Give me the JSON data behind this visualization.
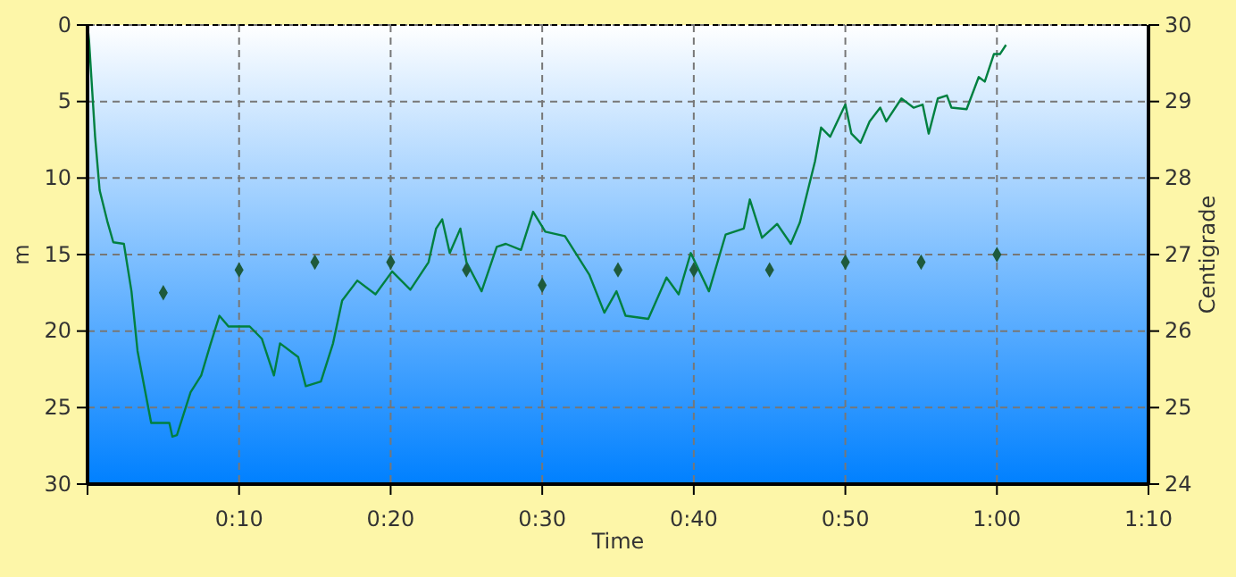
{
  "chart_data": {
    "type": "line",
    "xlabel": "Time",
    "ylabel": "m",
    "y2label": "Centigrade",
    "xlim": [
      0,
      70
    ],
    "xticks": [
      {
        "value": 0,
        "label": null
      },
      {
        "value": 10,
        "label": "0:10"
      },
      {
        "value": 20,
        "label": "0:20"
      },
      {
        "value": 30,
        "label": "0:30"
      },
      {
        "value": 40,
        "label": "0:40"
      },
      {
        "value": 50,
        "label": "0:50"
      },
      {
        "value": 60,
        "label": "1:00"
      },
      {
        "value": 70,
        "label": "1:10"
      }
    ],
    "ylim": [
      30,
      0
    ],
    "yticks": [
      0,
      5,
      10,
      15,
      20,
      25,
      30
    ],
    "y2lim": [
      24,
      30
    ],
    "y2ticks": [
      24,
      25,
      26,
      27,
      28,
      29,
      30
    ],
    "grid": true,
    "series": [
      {
        "color": "#008040",
        "marker": "none",
        "line_style": "solid",
        "x": [
          0,
          0.1,
          0.5,
          0.8,
          1.3,
          1.7,
          2.4,
          2.9,
          3.3,
          4.2,
          5.4,
          5.6,
          5.9,
          6.8,
          7.5,
          8.1,
          8.7,
          9.3,
          10.7,
          11.5,
          12.3,
          12.7,
          13.9,
          14.4,
          15.4,
          16.2,
          16.8,
          17.8,
          19,
          20.1,
          21.3,
          22.5,
          23,
          23.4,
          23.9,
          24.6,
          25,
          26,
          27,
          27.6,
          28.6,
          29.4,
          30.2,
          31.5,
          33.1,
          34.1,
          34.9,
          35.5,
          37,
          38.2,
          39,
          39.8,
          41,
          42.1,
          43.3,
          43.7,
          44.5,
          45.5,
          46.4,
          47,
          48,
          48.4,
          49,
          50,
          50.4,
          51,
          51.6,
          52.3,
          52.7,
          53.7,
          54.5,
          55.1,
          55.5,
          56.1,
          56.7,
          57,
          58,
          58.8,
          59.2,
          59.8,
          60.2,
          60.6
        ],
        "values": [
          0,
          1.0,
          7.3,
          10.8,
          12.8,
          14.2,
          14.3,
          17.4,
          21.3,
          26,
          26,
          26.9,
          26.8,
          24,
          22.9,
          20.9,
          19,
          19.7,
          19.7,
          20.5,
          22.9,
          20.8,
          21.7,
          23.6,
          23.3,
          20.8,
          18,
          16.7,
          17.6,
          16.1,
          17.3,
          15.5,
          13.3,
          12.7,
          14.9,
          13.3,
          15.5,
          17.4,
          14.5,
          14.3,
          14.7,
          12.2,
          13.5,
          13.8,
          16.3,
          18.8,
          17.4,
          19,
          19.2,
          16.5,
          17.6,
          14.9,
          17.4,
          13.7,
          13.3,
          11.4,
          13.9,
          13,
          14.3,
          12.9,
          8.9,
          6.7,
          7.3,
          5.2,
          7.1,
          7.7,
          6.3,
          5.4,
          6.3,
          4.8,
          5.4,
          5.2,
          7.1,
          4.8,
          4.6,
          5.4,
          5.5,
          3.4,
          3.7,
          1.9,
          1.9,
          1.3
        ]
      },
      {
        "type": "scatter",
        "axis": "y2",
        "color": "#1e5a3c",
        "marker": "diamond",
        "x": [
          5,
          10,
          15,
          20,
          25,
          30,
          35,
          40,
          45,
          50,
          55,
          60
        ],
        "values": [
          26.5,
          26.8,
          26.9,
          26.9,
          26.8,
          26.6,
          26.8,
          26.8,
          26.8,
          26.9,
          26.9,
          27.0
        ]
      }
    ]
  }
}
